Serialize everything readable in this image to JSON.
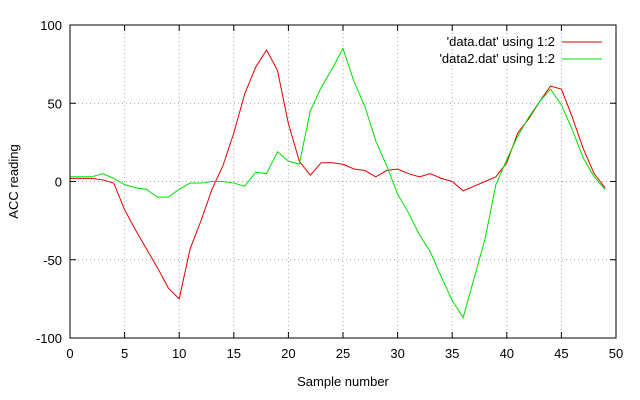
{
  "chart_data": {
    "type": "line",
    "title": "",
    "xlabel": "Sample number",
    "ylabel": "ACC reading",
    "xlim": [
      0,
      50
    ],
    "ylim": [
      -100,
      100
    ],
    "x_ticks": [
      0,
      5,
      10,
      15,
      20,
      25,
      30,
      35,
      40,
      45,
      50
    ],
    "y_ticks": [
      -100,
      -50,
      0,
      50,
      100
    ],
    "grid": "dotted",
    "legend_position": "top-right",
    "x": [
      0,
      1,
      2,
      3,
      4,
      5,
      6,
      7,
      8,
      9,
      10,
      11,
      12,
      13,
      14,
      15,
      16,
      17,
      18,
      19,
      20,
      21,
      22,
      23,
      24,
      25,
      26,
      27,
      28,
      29,
      30,
      31,
      32,
      33,
      34,
      35,
      36,
      37,
      38,
      39,
      40,
      41,
      42,
      43,
      44,
      45,
      46,
      47,
      48,
      49
    ],
    "series": [
      {
        "name": "'data.dat' using 1:2",
        "color": "#e00000",
        "values": [
          2,
          2,
          2,
          1,
          -1,
          -18,
          -31,
          -43,
          -55,
          -68,
          -75,
          -43,
          -25,
          -5,
          10,
          31,
          56,
          73,
          84,
          71,
          37,
          13,
          4,
          12,
          12,
          11,
          8,
          7,
          3,
          7,
          8,
          5,
          3,
          5,
          2,
          0,
          -6,
          -3,
          0,
          3,
          12,
          31,
          40,
          51,
          61,
          59,
          41,
          21,
          5,
          -4
        ]
      },
      {
        "name": "'data2.dat' using 1:2",
        "color": "#00e000",
        "values": [
          3,
          3,
          3,
          5,
          2,
          -2,
          -4,
          -5,
          -10,
          -10,
          -5,
          -1,
          -1,
          0,
          0,
          -1,
          -3,
          6,
          5,
          19,
          13,
          11,
          45,
          60,
          72,
          85,
          64,
          48,
          26,
          10,
          -8,
          -20,
          -34,
          -45,
          -61,
          -76,
          -87,
          -62,
          -37,
          -2,
          14,
          29,
          41,
          51,
          59,
          49,
          33,
          15,
          3,
          -5
        ]
      }
    ]
  }
}
